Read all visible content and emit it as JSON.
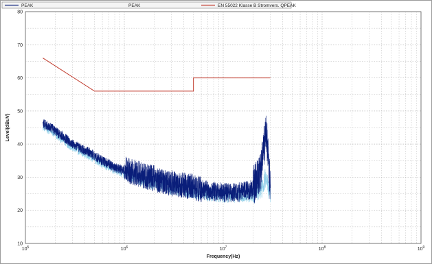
{
  "chart_data": {
    "type": "line",
    "title": "",
    "xlabel": "Frequency(Hz)",
    "ylabel": "Level(dBuV)",
    "x_scale": "log",
    "xlim": [
      100000,
      1000000000
    ],
    "ylim": [
      10,
      80
    ],
    "x_tick_labels": [
      {
        "value": 100000,
        "base": "10",
        "exp": "5"
      },
      {
        "value": 1000000,
        "base": "10",
        "exp": "6"
      },
      {
        "value": 10000000,
        "base": "10",
        "exp": "7"
      },
      {
        "value": 100000000,
        "base": "10",
        "exp": "8"
      }
    ],
    "y_ticks": [
      10,
      20,
      30,
      40,
      50,
      60,
      70,
      80
    ],
    "grid": true,
    "legend_position": "top",
    "colors": {
      "peak_dark": "#0a1e7a",
      "peak_light": "#8fcfe8",
      "limit": "#c0392b",
      "grid": "#b8b8b8"
    },
    "series": [
      {
        "name": "PEAK",
        "color": "#0a1e7a",
        "points": [
          [
            150000,
            45.8
          ],
          [
            180000,
            44.5
          ],
          [
            200000,
            43.5
          ],
          [
            250000,
            41.5
          ],
          [
            300000,
            39.5
          ],
          [
            350000,
            38.5
          ],
          [
            400000,
            37.5
          ],
          [
            450000,
            37.0
          ],
          [
            500000,
            36.0
          ],
          [
            600000,
            34.5
          ],
          [
            700000,
            33.5
          ],
          [
            800000,
            32.5
          ],
          [
            1000000,
            31.5
          ],
          [
            1200000,
            30.5
          ],
          [
            1500000,
            29.5
          ],
          [
            2000000,
            28.5
          ],
          [
            2500000,
            27.5
          ],
          [
            3000000,
            27.0
          ],
          [
            4000000,
            26.3
          ],
          [
            5000000,
            25.8
          ],
          [
            6000000,
            25.3
          ],
          [
            8000000,
            24.8
          ],
          [
            10000000,
            24.5
          ],
          [
            13000000,
            24.5
          ],
          [
            16000000,
            24.8
          ],
          [
            20000000,
            25.5
          ],
          [
            24000000,
            30.0
          ],
          [
            26000000,
            38.0
          ],
          [
            27000000,
            41.5
          ],
          [
            28000000,
            38.0
          ],
          [
            30000000,
            24.5
          ]
        ]
      },
      {
        "name": "PEAK",
        "color": "#8fcfe8",
        "points": [
          [
            150000,
            45.0
          ],
          [
            200000,
            42.5
          ],
          [
            300000,
            38.5
          ],
          [
            500000,
            35.0
          ],
          [
            700000,
            32.5
          ],
          [
            1000000,
            30.5
          ],
          [
            1500000,
            28.5
          ],
          [
            2000000,
            27.5
          ],
          [
            3000000,
            26.0
          ],
          [
            5000000,
            24.8
          ],
          [
            8000000,
            24.0
          ],
          [
            10000000,
            23.8
          ],
          [
            15000000,
            23.8
          ],
          [
            20000000,
            24.0
          ],
          [
            25000000,
            25.5
          ],
          [
            27000000,
            29.5
          ],
          [
            28000000,
            27.0
          ],
          [
            30000000,
            23.5
          ]
        ]
      },
      {
        "name": "EN 55022 Klasse B Stromvers. QPEAK",
        "color": "#c0392b",
        "points": [
          [
            150000,
            66.0
          ],
          [
            500000,
            56.0
          ],
          [
            5000000,
            56.0
          ],
          [
            5000000,
            60.0
          ],
          [
            30000000,
            60.0
          ]
        ]
      }
    ]
  }
}
